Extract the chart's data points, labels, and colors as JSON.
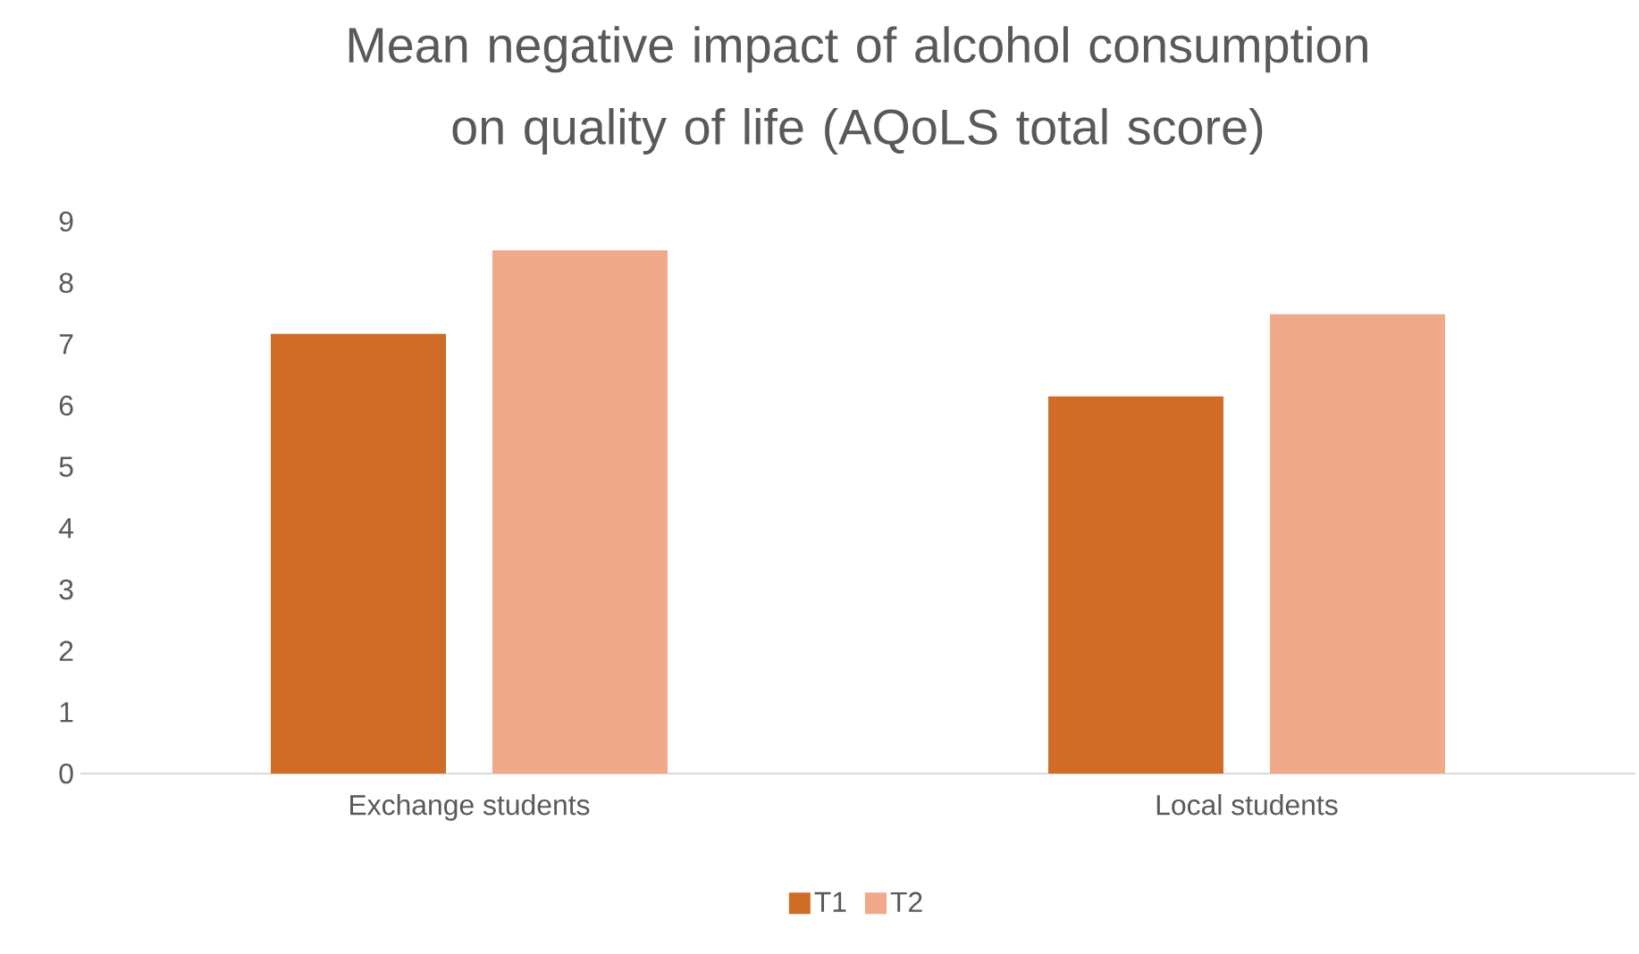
{
  "chart_data": {
    "type": "bar",
    "title": "Mean negative impact of alcohol consumption on quality of life (AQoLS total score)",
    "categories": [
      "Exchange students",
      "Local students"
    ],
    "series": [
      {
        "name": "T1",
        "color": "#d06c28",
        "values": [
          7.17,
          6.15
        ]
      },
      {
        "name": "T2",
        "color": "#f0a98a",
        "values": [
          8.53,
          7.49
        ]
      }
    ],
    "ylim": [
      0,
      9
    ],
    "yticks": [
      0,
      1,
      2,
      3,
      4,
      5,
      6,
      7,
      8,
      9
    ],
    "grid": false,
    "legend": "bottom"
  }
}
